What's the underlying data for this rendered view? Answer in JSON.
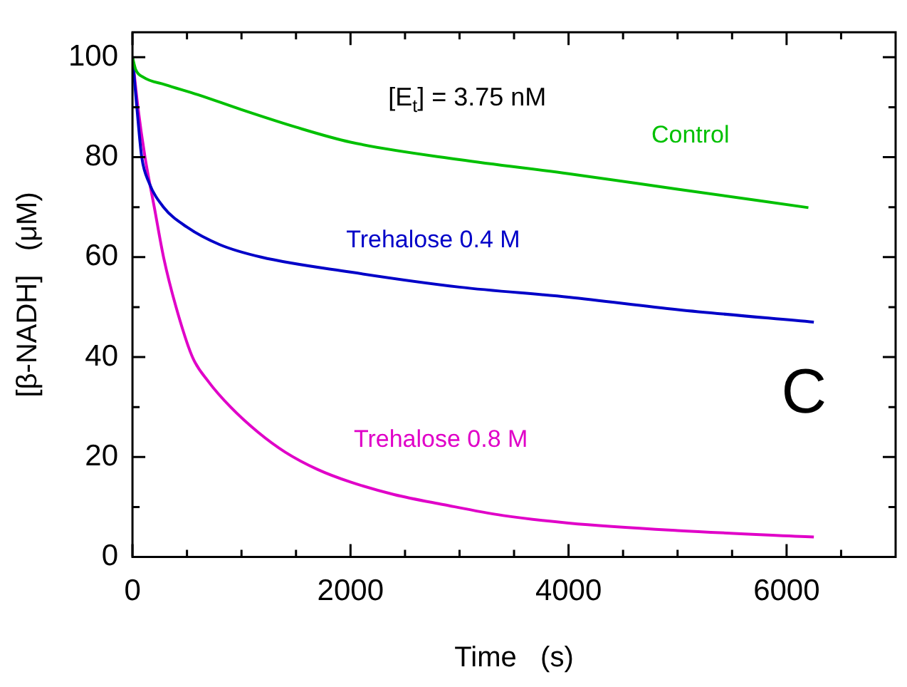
{
  "chart_data": {
    "type": "line",
    "xlabel": "Time   (s)",
    "ylabel": "[β-NADH]   (μM)",
    "xlim": [
      0,
      7000
    ],
    "ylim": [
      0,
      105
    ],
    "xticks": [
      0,
      {
        "value": 500,
        "label": null
      },
      {
        "value": 1000,
        "label": null
      },
      {
        "value": 1500,
        "label": null
      },
      2000,
      {
        "value": 2500,
        "label": null
      },
      {
        "value": 3000,
        "label": null
      },
      {
        "value": 3500,
        "label": null
      },
      4000,
      {
        "value": 4500,
        "label": null
      },
      {
        "value": 5000,
        "label": null
      },
      {
        "value": 5500,
        "label": null
      },
      6000,
      {
        "value": 6500,
        "label": null
      }
    ],
    "yticks": [
      0,
      {
        "value": 10,
        "label": null
      },
      20,
      {
        "value": 30,
        "label": null
      },
      40,
      {
        "value": 50,
        "label": null
      },
      60,
      {
        "value": 70,
        "label": null
      },
      80,
      {
        "value": 90,
        "label": null
      },
      100
    ],
    "grid": false,
    "legend": false,
    "marker": "none",
    "line_style": "solid",
    "annotations": [
      "[E$_{t}$] = 3.75 nM",
      "C"
    ],
    "series": [
      {
        "name": "Control",
        "color": "#00c000",
        "x": [
          0,
          30,
          100,
          300,
          600,
          1000,
          1500,
          2000,
          3000,
          4000,
          5000,
          6200
        ],
        "values": [
          100,
          97.5,
          96,
          94.5,
          92.5,
          89.5,
          86,
          83,
          79.5,
          76.7,
          73.6,
          69.9
        ]
      },
      {
        "name": "Trehalose 0.4 M",
        "color": "#0000c8",
        "x": [
          0,
          40,
          85,
          150,
          285,
          500,
          800,
          1180,
          2000,
          3000,
          4000,
          5000,
          6250
        ],
        "values": [
          100,
          90,
          80,
          75,
          70,
          66,
          62.5,
          60,
          57,
          54,
          52,
          49.5,
          47
        ]
      },
      {
        "name": "Trehalose 0.8 M",
        "color": "#e000c8",
        "x": [
          0,
          50,
          115,
          200,
          285,
          400,
          550,
          700,
          900,
          1150,
          1400,
          1700,
          2000,
          2400,
          2850,
          3400,
          4000,
          5000,
          6250
        ],
        "values": [
          100,
          90,
          80,
          70,
          60,
          50,
          40,
          35,
          30,
          25,
          21,
          17.5,
          15,
          12.5,
          10.5,
          8.3,
          6.8,
          5.3,
          4
        ]
      }
    ]
  }
}
